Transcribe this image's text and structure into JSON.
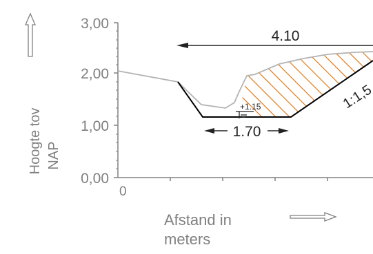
{
  "y_axis": {
    "title_line1": "Hoogte tov",
    "title_line2": "NAP",
    "ticks": [
      "3,00",
      "2,00",
      "1,00",
      "0,00"
    ]
  },
  "x_axis": {
    "origin_label": "0",
    "title_line1": "Afstand in",
    "title_line2": "meters"
  },
  "annotations": {
    "total_width": "4.10",
    "bottom_width": "1.70",
    "water_level": "+1.15",
    "slope": "1:1,5"
  },
  "colors": {
    "axis": "#808080",
    "existing_profile": "#b3b3b3",
    "design_profile": "#000000",
    "hatch": "#e07b1a"
  }
}
